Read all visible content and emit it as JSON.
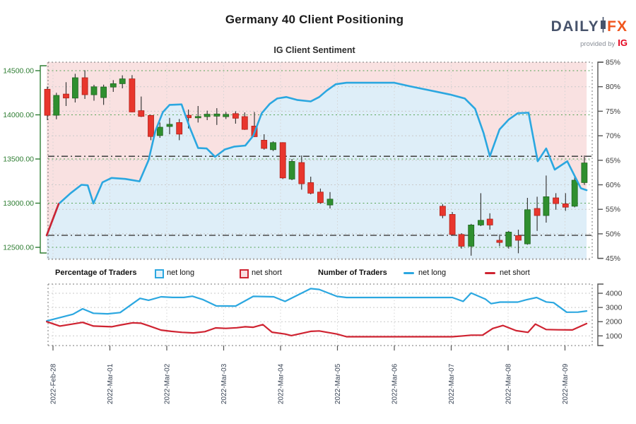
{
  "header": {
    "title": "Germany 40 Client Positioning",
    "subtitle": "IG Client Sentiment",
    "logo": {
      "daily": "DAILY",
      "fx": "FX",
      "provided_by": "provided by",
      "ig": "IG"
    }
  },
  "legend": {
    "percentage_group_label": "Percentage of Traders",
    "number_group_label": "Number of Traders",
    "net_long_label": "net long",
    "net_short_label": "net short"
  },
  "colors": {
    "net_long_blue": "#2ba7e0",
    "net_short_red": "#cf2331",
    "candle_up": "#2f8f2f",
    "candle_down": "#e8362d",
    "wick": "#3a3a3a",
    "above_fill": "#f7d9d9",
    "below_fill": "#d8ebf7",
    "price_axis_green": "#2e7d32",
    "grid_green": "#55a455",
    "grid_gray": "#c9c9c9",
    "ref_line": "#4a4a4a",
    "axis_text": "#3c3c3c",
    "date_text": "#3a4556",
    "border_dot": "#777777"
  },
  "chart_data": [
    {
      "panel": "price-and-sentiment",
      "type": "candlestick",
      "title": "Germany 40 price (candles) with IG client net-long % (line)",
      "x_tick_labels": [
        "2022-Feb-28",
        "2022-Mar-01",
        "2022-Mar-02",
        "2022-Mar-03",
        "2022-Mar-04",
        "2022-Mar-05",
        "2022-Mar-06",
        "2022-Mar-07",
        "2022-Mar-08",
        "2022-Mar-09"
      ],
      "price_axis_ticks": [
        {
          "v": 14500,
          "label": "14500.00"
        },
        {
          "v": 14000,
          "label": "14000.00"
        },
        {
          "v": 13500,
          "label": "13500.00"
        },
        {
          "v": 13000,
          "label": "13000.00"
        },
        {
          "v": 12500,
          "label": "12500.00"
        }
      ],
      "pct_axis_ticks": [
        {
          "v": 85,
          "label": "85%"
        },
        {
          "v": 80,
          "label": "80%"
        },
        {
          "v": 75,
          "label": "75%"
        },
        {
          "v": 70,
          "label": "70%"
        },
        {
          "v": 65,
          "label": "65%"
        },
        {
          "v": 60,
          "label": "60%"
        },
        {
          "v": 55,
          "label": "55%"
        },
        {
          "v": 50,
          "label": "50%"
        },
        {
          "v": 45,
          "label": "45%"
        }
      ],
      "reference_lines_pct": [
        65.8,
        49.7
      ],
      "candles_format": [
        "t_days_from_first_tick",
        "open",
        "high",
        "low",
        "close"
      ],
      "candles": [
        [
          -0.1,
          14290,
          14320,
          13940,
          13995
        ],
        [
          0.06,
          13995,
          14250,
          13950,
          14220
        ],
        [
          0.23,
          14235,
          14370,
          14100,
          14190
        ],
        [
          0.39,
          14190,
          14465,
          14140,
          14420
        ],
        [
          0.56,
          14420,
          14505,
          14180,
          14228
        ],
        [
          0.72,
          14228,
          14340,
          14160,
          14318
        ],
        [
          0.89,
          14195,
          14342,
          14113,
          14315
        ],
        [
          1.06,
          14315,
          14393,
          14260,
          14353
        ],
        [
          1.22,
          14353,
          14447,
          14300,
          14407
        ],
        [
          1.39,
          14407,
          14450,
          14028,
          14033
        ],
        [
          1.55,
          14047,
          14207,
          13975,
          13982
        ],
        [
          1.72,
          13993,
          14000,
          13713,
          13755
        ],
        [
          1.88,
          13766,
          13913,
          13740,
          13860
        ],
        [
          2.05,
          13868,
          13966,
          13780,
          13893
        ],
        [
          2.22,
          13913,
          13953,
          13713,
          13782
        ],
        [
          2.38,
          13995,
          14060,
          13846,
          13966
        ],
        [
          2.55,
          13966,
          14100,
          13913,
          13982
        ],
        [
          2.71,
          13980,
          14047,
          13940,
          14007
        ],
        [
          2.88,
          13985,
          14075,
          13886,
          14010
        ],
        [
          3.04,
          13980,
          14033,
          13953,
          14006
        ],
        [
          3.21,
          14014,
          14040,
          13900,
          13962
        ],
        [
          3.37,
          13980,
          14027,
          13830,
          13835
        ],
        [
          3.54,
          13873,
          14032,
          13750,
          13753
        ],
        [
          3.71,
          13713,
          13780,
          13606,
          13620
        ],
        [
          3.87,
          13606,
          13700,
          13590,
          13686
        ],
        [
          4.04,
          13686,
          13690,
          13273,
          13286
        ],
        [
          4.2,
          13273,
          13500,
          13260,
          13473
        ],
        [
          4.37,
          13460,
          13540,
          13153,
          13220
        ],
        [
          4.53,
          13233,
          13300,
          13100,
          13113
        ],
        [
          4.7,
          13126,
          13166,
          12993,
          13006
        ],
        [
          4.87,
          12980,
          13126,
          12940,
          13046
        ],
        [
          6.85,
          12966,
          12990,
          12830,
          12860
        ],
        [
          7.02,
          12873,
          12900,
          12633,
          12646
        ],
        [
          7.18,
          12646,
          12660,
          12486,
          12513
        ],
        [
          7.35,
          12513,
          12766,
          12406,
          12753
        ],
        [
          7.52,
          12753,
          13113,
          12740,
          12806
        ],
        [
          7.68,
          12820,
          12886,
          12700,
          12753
        ],
        [
          7.85,
          12580,
          12646,
          12513,
          12555
        ],
        [
          8.01,
          12513,
          12686,
          12486,
          12673
        ],
        [
          8.18,
          12633,
          12700,
          12433,
          12580
        ],
        [
          8.34,
          12540,
          13060,
          12530,
          12926
        ],
        [
          8.51,
          12940,
          13073,
          12686,
          12860
        ],
        [
          8.67,
          12860,
          13313,
          12780,
          13073
        ],
        [
          8.84,
          13060,
          13113,
          12926,
          12995
        ],
        [
          9.01,
          12993,
          13113,
          12913,
          12955
        ],
        [
          9.17,
          12966,
          13313,
          12953,
          13260
        ],
        [
          9.34,
          13233,
          13540,
          13206,
          13455
        ]
      ],
      "sentiment_pct_line": {
        "name": "net long %",
        "red_segment_end_index": 1,
        "points": [
          [
            -0.11,
            49.7
          ],
          [
            0.1,
            56.1
          ],
          [
            0.31,
            58.3
          ],
          [
            0.5,
            60.0
          ],
          [
            0.61,
            59.9
          ],
          [
            0.71,
            56.2
          ],
          [
            0.87,
            60.5
          ],
          [
            1.03,
            61.4
          ],
          [
            1.27,
            61.2
          ],
          [
            1.52,
            60.7
          ],
          [
            1.68,
            65.0
          ],
          [
            1.8,
            71.0
          ],
          [
            1.93,
            74.8
          ],
          [
            2.05,
            76.3
          ],
          [
            2.26,
            76.4
          ],
          [
            2.4,
            71.8
          ],
          [
            2.55,
            67.5
          ],
          [
            2.7,
            67.4
          ],
          [
            2.85,
            65.7
          ],
          [
            3.02,
            67.2
          ],
          [
            3.19,
            67.8
          ],
          [
            3.38,
            68.0
          ],
          [
            3.52,
            70.0
          ],
          [
            3.67,
            74.6
          ],
          [
            3.81,
            76.5
          ],
          [
            3.94,
            77.6
          ],
          [
            4.1,
            77.9
          ],
          [
            4.29,
            77.3
          ],
          [
            4.53,
            77.0
          ],
          [
            4.68,
            77.9
          ],
          [
            4.81,
            79.2
          ],
          [
            4.97,
            80.5
          ],
          [
            5.16,
            80.8
          ],
          [
            6.0,
            80.8
          ],
          [
            6.27,
            80.1
          ],
          [
            6.61,
            79.3
          ],
          [
            6.98,
            78.4
          ],
          [
            7.24,
            77.6
          ],
          [
            7.42,
            75.5
          ],
          [
            7.57,
            70.5
          ],
          [
            7.68,
            65.8
          ],
          [
            7.85,
            71.3
          ],
          [
            8.01,
            73.3
          ],
          [
            8.17,
            74.6
          ],
          [
            8.36,
            74.7
          ],
          [
            8.52,
            64.8
          ],
          [
            8.67,
            67.4
          ],
          [
            8.82,
            63.1
          ],
          [
            9.04,
            64.8
          ],
          [
            9.28,
            59.3
          ],
          [
            9.38,
            58.9
          ]
        ]
      }
    },
    {
      "panel": "number-of-traders",
      "type": "line",
      "count_axis_ticks": [
        {
          "v": 4000,
          "label": "4000"
        },
        {
          "v": 3000,
          "label": "3000"
        },
        {
          "v": 2000,
          "label": "2000"
        },
        {
          "v": 1000,
          "label": "1000"
        }
      ],
      "series": [
        {
          "name": "net long",
          "color_key": "net_long_blue",
          "points": [
            [
              -0.11,
              2050
            ],
            [
              0.12,
              2290
            ],
            [
              0.35,
              2520
            ],
            [
              0.52,
              2905
            ],
            [
              0.71,
              2590
            ],
            [
              0.96,
              2550
            ],
            [
              1.18,
              2640
            ],
            [
              1.53,
              3640
            ],
            [
              1.68,
              3505
            ],
            [
              1.9,
              3750
            ],
            [
              2.1,
              3705
            ],
            [
              2.3,
              3705
            ],
            [
              2.45,
              3790
            ],
            [
              2.63,
              3560
            ],
            [
              2.87,
              3110
            ],
            [
              3.21,
              3100
            ],
            [
              3.52,
              3780
            ],
            [
              3.88,
              3750
            ],
            [
              4.08,
              3430
            ],
            [
              4.53,
              4330
            ],
            [
              4.68,
              4270
            ],
            [
              4.99,
              3780
            ],
            [
              5.16,
              3700
            ],
            [
              7.02,
              3700
            ],
            [
              7.21,
              3430
            ],
            [
              7.35,
              4020
            ],
            [
              7.6,
              3590
            ],
            [
              7.7,
              3270
            ],
            [
              7.86,
              3380
            ],
            [
              8.17,
              3380
            ],
            [
              8.32,
              3540
            ],
            [
              8.5,
              3700
            ],
            [
              8.67,
              3390
            ],
            [
              8.8,
              3340
            ],
            [
              9.03,
              2665
            ],
            [
              9.23,
              2670
            ],
            [
              9.38,
              2750
            ]
          ]
        },
        {
          "name": "net short",
          "color_key": "net_short_red",
          "points": [
            [
              -0.11,
              2000
            ],
            [
              0.12,
              1690
            ],
            [
              0.35,
              1840
            ],
            [
              0.52,
              1950
            ],
            [
              0.71,
              1690
            ],
            [
              1.03,
              1640
            ],
            [
              1.18,
              1760
            ],
            [
              1.4,
              1920
            ],
            [
              1.55,
              1890
            ],
            [
              1.7,
              1690
            ],
            [
              1.9,
              1410
            ],
            [
              2.08,
              1320
            ],
            [
              2.27,
              1250
            ],
            [
              2.47,
              1210
            ],
            [
              2.67,
              1300
            ],
            [
              2.86,
              1560
            ],
            [
              3.04,
              1525
            ],
            [
              3.23,
              1570
            ],
            [
              3.38,
              1640
            ],
            [
              3.52,
              1605
            ],
            [
              3.69,
              1795
            ],
            [
              3.85,
              1260
            ],
            [
              4.08,
              1130
            ],
            [
              4.19,
              1020
            ],
            [
              4.53,
              1320
            ],
            [
              4.68,
              1350
            ],
            [
              4.99,
              1130
            ],
            [
              5.16,
              940
            ],
            [
              7.02,
              940
            ],
            [
              7.21,
              1000
            ],
            [
              7.35,
              1050
            ],
            [
              7.55,
              1050
            ],
            [
              7.73,
              1520
            ],
            [
              7.91,
              1730
            ],
            [
              8.14,
              1370
            ],
            [
              8.35,
              1250
            ],
            [
              8.48,
              1830
            ],
            [
              8.67,
              1450
            ],
            [
              8.88,
              1430
            ],
            [
              9.13,
              1420
            ],
            [
              9.38,
              1865
            ]
          ]
        }
      ]
    }
  ]
}
